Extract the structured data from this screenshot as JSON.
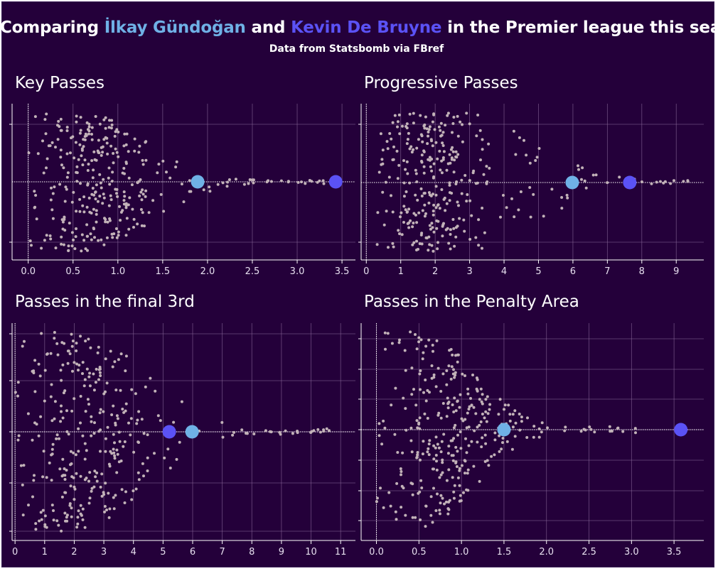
{
  "header": {
    "title_prefix": "Comparing ",
    "player_a": "İlkay Gündoğan",
    "title_mid": " and ",
    "player_b": "Kevin De Bruyne",
    "title_suffix": " in the Premier league this season",
    "subtitle": "Data from Statsbomb via FBref"
  },
  "colors": {
    "background": "#24003a",
    "grid": "#8a6a9a",
    "dots": "#c2b2b8",
    "player_a": "#6fb1e6",
    "player_b": "#5b52f5",
    "text": "#ffffff"
  },
  "chart_data": [
    {
      "type": "scatter",
      "title": "Key Passes",
      "xlim": [
        -0.18,
        3.65
      ],
      "xticks": [
        "0.0",
        "0.5",
        "1.0",
        "1.5",
        "2.0",
        "2.5",
        "3.0",
        "3.5"
      ],
      "xtick_values": [
        0,
        0.5,
        1.0,
        1.5,
        2.0,
        2.5,
        3.0,
        3.5
      ],
      "grid": true,
      "highlights": [
        {
          "name": "İlkay Gündoğan",
          "x": 1.89
        },
        {
          "name": "Kevin De Bruyne",
          "x": 3.43
        }
      ],
      "population": {
        "count": 330,
        "min": 0,
        "max": 3.3,
        "peak": 0.6,
        "spread": 1.05
      }
    },
    {
      "type": "scatter",
      "title": "Progressive Passes",
      "xlim": [
        -0.15,
        9.8
      ],
      "xticks": [
        "0",
        "1",
        "2",
        "3",
        "4",
        "5",
        "6",
        "7",
        "8",
        "9"
      ],
      "xtick_values": [
        0,
        1,
        2,
        3,
        4,
        5,
        6,
        7,
        8,
        9
      ],
      "grid": true,
      "highlights": [
        {
          "name": "İlkay Gündoğan",
          "x": 5.98
        },
        {
          "name": "Kevin De Bruyne",
          "x": 7.65
        }
      ],
      "population": {
        "count": 330,
        "min": 0.3,
        "max": 9.4,
        "peak": 2.6,
        "spread": 2.3
      }
    },
    {
      "type": "scatter",
      "title": "Passes in the final 3rd",
      "xlim": [
        -0.1,
        11.5
      ],
      "xticks": [
        "0",
        "1",
        "2",
        "3",
        "4",
        "5",
        "6",
        "7",
        "8",
        "9",
        "10",
        "11"
      ],
      "xtick_values": [
        0,
        1,
        2,
        3,
        4,
        5,
        6,
        7,
        8,
        9,
        10,
        11
      ],
      "grid": true,
      "highlights": [
        {
          "name": "Kevin De Bruyne",
          "x": 5.21
        },
        {
          "name": "İlkay Gündoğan",
          "x": 5.98
        }
      ],
      "population": {
        "count": 330,
        "min": 0,
        "max": 10.8,
        "peak": 2.0,
        "spread": 3.2
      }
    },
    {
      "type": "scatter",
      "title": "Passes in the Penalty Area",
      "xlim": [
        -0.18,
        3.85
      ],
      "xticks": [
        "0.0",
        "0.5",
        "1.0",
        "1.5",
        "2.0",
        "2.5",
        "3.0",
        "3.5"
      ],
      "xtick_values": [
        0,
        0.5,
        1.0,
        1.5,
        2.0,
        2.5,
        3.0,
        3.5
      ],
      "grid": true,
      "highlights": [
        {
          "name": "İlkay Gündoğan",
          "x": 1.5
        },
        {
          "name": "Kevin De Bruyne",
          "x": 3.58
        }
      ],
      "population": {
        "count": 330,
        "min": 0,
        "max": 3.05,
        "peak": 0.45,
        "spread": 1.15
      }
    }
  ]
}
